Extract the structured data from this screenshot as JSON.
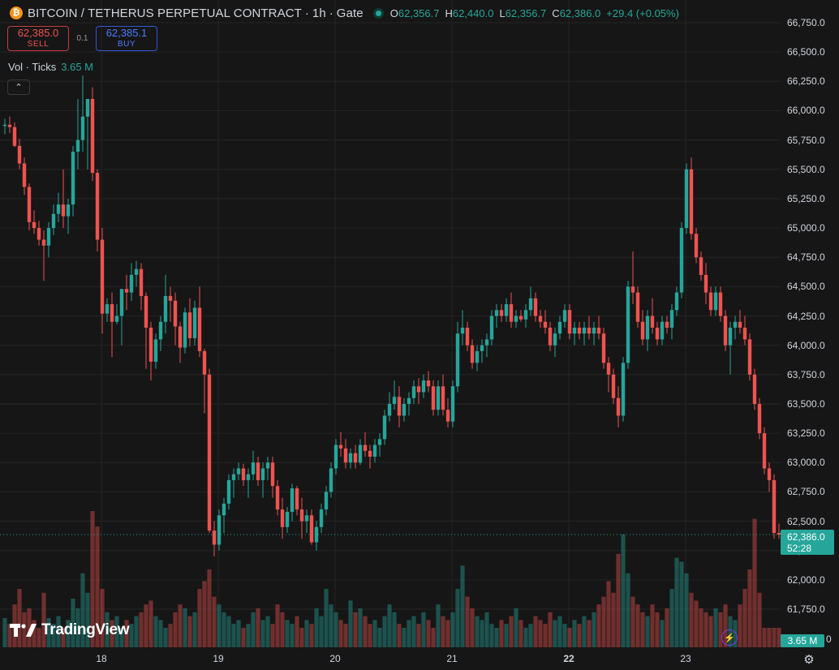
{
  "header": {
    "coin_glyph": "₿",
    "symbol": "BITCOIN / TETHERUS PERPETUAL CONTRACT",
    "separator": "·",
    "interval": "1h",
    "exchange": "Gate",
    "ohlc": {
      "o_label": "O",
      "o_value": "62,356.7",
      "h_label": "H",
      "h_value": "62,440.0",
      "l_label": "L",
      "l_value": "62,356.7",
      "c_label": "C",
      "c_value": "62,386.0",
      "change": "+29.4 (+0.05%)"
    }
  },
  "trade": {
    "sell_price": "62,385.0",
    "sell_label": "SELL",
    "spread": "0.1",
    "buy_price": "62,385.1",
    "buy_label": "BUY"
  },
  "volume_legend": {
    "label": "Vol · Ticks",
    "value": "3.65 M"
  },
  "collapse_glyph": "⌃",
  "y_axis": {
    "min": 61800,
    "max": 66800,
    "ticks": [
      "66,750.0",
      "66,500.0",
      "66,250.0",
      "66,000.0",
      "65,750.0",
      "65,500.0",
      "65,250.0",
      "65,000.0",
      "64,750.0",
      "64,500.0",
      "64,250.0",
      "64,000.0",
      "63,750.0",
      "63,500.0",
      "63,250.0",
      "63,000.0",
      "62,750.0",
      "62,500.0",
      "62,250.0",
      "62,000.0",
      "61,750.0"
    ],
    "zero_label": "0"
  },
  "x_axis": {
    "ticks": [
      {
        "label": "18",
        "bold": false
      },
      {
        "label": "19",
        "bold": false
      },
      {
        "label": "20",
        "bold": false
      },
      {
        "label": "21",
        "bold": false
      },
      {
        "label": "22",
        "bold": true
      },
      {
        "label": "23",
        "bold": false
      }
    ]
  },
  "last_price": {
    "price": "62,386.0",
    "countdown": "52:28"
  },
  "last_volume": "3.65 M",
  "branding": {
    "logo_text": "TradingView"
  },
  "icons": {
    "flash": "⚡",
    "settings": "⚙"
  },
  "colors": {
    "up": "#26a69a",
    "down": "#ef5350",
    "background": "#161616",
    "grid": "#242424"
  },
  "chart_data": {
    "type": "candlestick",
    "interval": "1h",
    "price_range": [
      61800,
      66800
    ],
    "volume_max": 1,
    "candles_ohlc": [
      [
        65870,
        65930,
        65800,
        65880
      ],
      [
        65880,
        65950,
        65810,
        65860
      ],
      [
        65860,
        65900,
        65690,
        65700
      ],
      [
        65700,
        65760,
        65500,
        65550
      ],
      [
        65550,
        65600,
        65280,
        65350
      ],
      [
        65350,
        65380,
        64980,
        65050
      ],
      [
        65050,
        65150,
        64950,
        65000
      ],
      [
        65000,
        65060,
        64850,
        64900
      ],
      [
        64900,
        64980,
        64550,
        64850
      ],
      [
        64850,
        65050,
        64750,
        65000
      ],
      [
        65000,
        65200,
        64940,
        65120
      ],
      [
        65120,
        65300,
        65050,
        65200
      ],
      [
        65200,
        65500,
        65000,
        65100
      ],
      [
        65100,
        65250,
        64950,
        65200
      ],
      [
        65200,
        65700,
        65100,
        65650
      ],
      [
        65650,
        66100,
        65500,
        65750
      ],
      [
        65750,
        66300,
        65650,
        65950
      ],
      [
        65950,
        66050,
        65500,
        66100
      ],
      [
        66100,
        66200,
        65400,
        65470
      ],
      [
        65470,
        65500,
        64800,
        64900
      ],
      [
        64900,
        65000,
        64100,
        64270
      ],
      [
        64270,
        64400,
        64200,
        64350
      ],
      [
        64350,
        64450,
        63900,
        64200
      ],
      [
        64200,
        64350,
        64180,
        64250
      ],
      [
        64250,
        64400,
        64000,
        64480
      ],
      [
        64480,
        64600,
        64300,
        64450
      ],
      [
        64450,
        64700,
        64380,
        64600
      ],
      [
        64600,
        64720,
        64500,
        64650
      ],
      [
        64650,
        64700,
        64300,
        64420
      ],
      [
        64420,
        64450,
        63800,
        64150
      ],
      [
        64150,
        64200,
        63700,
        63860
      ],
      [
        63860,
        64100,
        63800,
        64050
      ],
      [
        64050,
        64250,
        63950,
        64200
      ],
      [
        64200,
        64600,
        64100,
        64420
      ],
      [
        64420,
        64500,
        64200,
        64380
      ],
      [
        64380,
        64450,
        64000,
        64160
      ],
      [
        64160,
        64200,
        63850,
        63980
      ],
      [
        63980,
        64320,
        63930,
        64280
      ],
      [
        64280,
        64400,
        63990,
        64060
      ],
      [
        64060,
        64380,
        64000,
        64320
      ],
      [
        64320,
        64500,
        63900,
        63950
      ],
      [
        63950,
        63970,
        63420,
        63750
      ],
      [
        63750,
        63800,
        62400,
        62420
      ],
      [
        62420,
        62500,
        62200,
        62300
      ],
      [
        62300,
        62600,
        62250,
        62550
      ],
      [
        62550,
        62700,
        62400,
        62650
      ],
      [
        62650,
        62900,
        62600,
        62850
      ],
      [
        62850,
        62950,
        62700,
        62900
      ],
      [
        62900,
        63000,
        62850,
        62950
      ],
      [
        62950,
        62990,
        62800,
        62850
      ],
      [
        62850,
        62950,
        62700,
        62900
      ],
      [
        62900,
        63100,
        62850,
        63000
      ],
      [
        63000,
        63050,
        62800,
        62850
      ],
      [
        62850,
        63000,
        62700,
        62950
      ],
      [
        62950,
        63050,
        62850,
        63000
      ],
      [
        63000,
        63050,
        62700,
        62800
      ],
      [
        62800,
        62850,
        62550,
        62600
      ],
      [
        62600,
        62700,
        62350,
        62450
      ],
      [
        62450,
        62620,
        62400,
        62580
      ],
      [
        62580,
        62820,
        62500,
        62780
      ],
      [
        62780,
        62800,
        62550,
        62600
      ],
      [
        62600,
        62700,
        62350,
        62500
      ],
      [
        62500,
        62600,
        62400,
        62550
      ],
      [
        62550,
        62600,
        62300,
        62320
      ],
      [
        62320,
        62500,
        62250,
        62450
      ],
      [
        62450,
        62650,
        62400,
        62600
      ],
      [
        62600,
        62800,
        62550,
        62750
      ],
      [
        62750,
        63000,
        62700,
        62950
      ],
      [
        62950,
        63200,
        62900,
        63150
      ],
      [
        63150,
        63260,
        63050,
        63120
      ],
      [
        63120,
        63200,
        62950,
        63000
      ],
      [
        63000,
        63120,
        62950,
        63080
      ],
      [
        63080,
        63150,
        62950,
        63000
      ],
      [
        63000,
        63200,
        62980,
        63150
      ],
      [
        63150,
        63260,
        63050,
        63100
      ],
      [
        63100,
        63150,
        62950,
        63050
      ],
      [
        63050,
        63200,
        63000,
        63150
      ],
      [
        63150,
        63250,
        63050,
        63200
      ],
      [
        63200,
        63450,
        63150,
        63400
      ],
      [
        63400,
        63600,
        63350,
        63500
      ],
      [
        63500,
        63700,
        63450,
        63560
      ],
      [
        63560,
        63650,
        63300,
        63400
      ],
      [
        63400,
        63550,
        63350,
        63500
      ],
      [
        63500,
        63600,
        63400,
        63550
      ],
      [
        63550,
        63700,
        63500,
        63650
      ],
      [
        63650,
        63720,
        63500,
        63600
      ],
      [
        63600,
        63750,
        63550,
        63700
      ],
      [
        63700,
        63780,
        63600,
        63650
      ],
      [
        63650,
        63700,
        63400,
        63450
      ],
      [
        63450,
        63700,
        63400,
        63650
      ],
      [
        63650,
        63750,
        63400,
        63450
      ],
      [
        63450,
        63550,
        63300,
        63350
      ],
      [
        63350,
        63700,
        63300,
        63650
      ],
      [
        63650,
        64200,
        63600,
        64100
      ],
      [
        64100,
        64300,
        64000,
        64150
      ],
      [
        64150,
        64200,
        63950,
        64000
      ],
      [
        64000,
        64050,
        63800,
        63850
      ],
      [
        63850,
        64000,
        63780,
        63950
      ],
      [
        63950,
        64050,
        63850,
        64000
      ],
      [
        64000,
        64100,
        63900,
        64050
      ],
      [
        64050,
        64300,
        64000,
        64250
      ],
      [
        64250,
        64350,
        64150,
        64300
      ],
      [
        64300,
        64350,
        64200,
        64250
      ],
      [
        64250,
        64400,
        64200,
        64350
      ],
      [
        64350,
        64450,
        64150,
        64200
      ],
      [
        64200,
        64300,
        64150,
        64250
      ],
      [
        64250,
        64300,
        64200,
        64220
      ],
      [
        64220,
        64350,
        64150,
        64300
      ],
      [
        64300,
        64500,
        64250,
        64400
      ],
      [
        64400,
        64450,
        64200,
        64250
      ],
      [
        64250,
        64300,
        64150,
        64200
      ],
      [
        64200,
        64300,
        64100,
        64150
      ],
      [
        64150,
        64200,
        63950,
        64000
      ],
      [
        64000,
        64150,
        63900,
        64100
      ],
      [
        64100,
        64250,
        64050,
        64200
      ],
      [
        64200,
        64350,
        64150,
        64300
      ],
      [
        64300,
        64350,
        64050,
        64100
      ],
      [
        64100,
        64200,
        64000,
        64150
      ],
      [
        64150,
        64200,
        64050,
        64100
      ],
      [
        64100,
        64200,
        64000,
        64150
      ],
      [
        64150,
        64250,
        64050,
        64100
      ],
      [
        64100,
        64200,
        64000,
        64150
      ],
      [
        64150,
        64250,
        64050,
        64100
      ],
      [
        64100,
        64150,
        63800,
        63850
      ],
      [
        63850,
        63900,
        63600,
        63750
      ],
      [
        63750,
        63800,
        63500,
        63550
      ],
      [
        63550,
        63650,
        63300,
        63400
      ],
      [
        63400,
        63900,
        63350,
        63850
      ],
      [
        63850,
        64550,
        63800,
        64500
      ],
      [
        64500,
        64800,
        64350,
        64450
      ],
      [
        64450,
        64500,
        64150,
        64200
      ],
      [
        64200,
        64300,
        64000,
        64050
      ],
      [
        64050,
        64300,
        63950,
        64250
      ],
      [
        64250,
        64400,
        64100,
        64150
      ],
      [
        64150,
        64200,
        64000,
        64050
      ],
      [
        64050,
        64250,
        64000,
        64200
      ],
      [
        64200,
        64250,
        64100,
        64150
      ],
      [
        64150,
        64350,
        64050,
        64300
      ],
      [
        64300,
        64500,
        64250,
        64450
      ],
      [
        64450,
        65050,
        64400,
        65000
      ],
      [
        65000,
        65550,
        64950,
        65500
      ],
      [
        65500,
        65600,
        64900,
        64950
      ],
      [
        64950,
        65000,
        64700,
        64750
      ],
      [
        64750,
        64800,
        64550,
        64600
      ],
      [
        64600,
        64700,
        64350,
        64450
      ],
      [
        64450,
        64500,
        64250,
        64300
      ],
      [
        64300,
        64500,
        64250,
        64450
      ],
      [
        64450,
        64500,
        64200,
        64250
      ],
      [
        64250,
        64300,
        63950,
        64000
      ],
      [
        64000,
        64200,
        63750,
        64150
      ],
      [
        64150,
        64250,
        64050,
        64200
      ],
      [
        64200,
        64300,
        64100,
        64150
      ],
      [
        64150,
        64250,
        64000,
        64050
      ],
      [
        64050,
        64100,
        63700,
        63750
      ],
      [
        63750,
        63800,
        63450,
        63500
      ],
      [
        63500,
        63550,
        63200,
        63250
      ],
      [
        63250,
        63300,
        62900,
        62950
      ],
      [
        62950,
        63000,
        62750,
        62850
      ],
      [
        62850,
        62900,
        62350,
        62400
      ],
      [
        62400,
        62480,
        62350,
        62386
      ]
    ],
    "volumes_relative": [
      0.15,
      0.12,
      0.22,
      0.3,
      0.18,
      0.2,
      0.14,
      0.1,
      0.28,
      0.15,
      0.12,
      0.16,
      0.1,
      0.14,
      0.25,
      0.2,
      0.38,
      0.28,
      0.7,
      0.62,
      0.3,
      0.18,
      0.14,
      0.16,
      0.1,
      0.14,
      0.12,
      0.16,
      0.18,
      0.22,
      0.24,
      0.16,
      0.14,
      0.1,
      0.12,
      0.18,
      0.22,
      0.2,
      0.16,
      0.18,
      0.3,
      0.34,
      0.4,
      0.26,
      0.22,
      0.18,
      0.16,
      0.12,
      0.14,
      0.1,
      0.12,
      0.18,
      0.2,
      0.14,
      0.16,
      0.12,
      0.22,
      0.18,
      0.14,
      0.12,
      0.16,
      0.1,
      0.14,
      0.12,
      0.2,
      0.16,
      0.3,
      0.22,
      0.18,
      0.14,
      0.12,
      0.24,
      0.18,
      0.2,
      0.16,
      0.12,
      0.14,
      0.1,
      0.16,
      0.22,
      0.18,
      0.12,
      0.1,
      0.14,
      0.16,
      0.12,
      0.18,
      0.14,
      0.1,
      0.22,
      0.16,
      0.14,
      0.18,
      0.3,
      0.42,
      0.26,
      0.2,
      0.16,
      0.14,
      0.18,
      0.12,
      0.1,
      0.14,
      0.12,
      0.16,
      0.2,
      0.14,
      0.1,
      0.12,
      0.16,
      0.14,
      0.12,
      0.18,
      0.14,
      0.16,
      0.12,
      0.1,
      0.14,
      0.12,
      0.16,
      0.14,
      0.18,
      0.22,
      0.26,
      0.34,
      0.28,
      0.48,
      0.58,
      0.38,
      0.26,
      0.22,
      0.18,
      0.16,
      0.22,
      0.18,
      0.14,
      0.2,
      0.3,
      0.46,
      0.44,
      0.38,
      0.28,
      0.24,
      0.2,
      0.18,
      0.16,
      0.2,
      0.18,
      0.22,
      0.16,
      0.14,
      0.22,
      0.3,
      0.4,
      0.66,
      0.28
    ]
  }
}
